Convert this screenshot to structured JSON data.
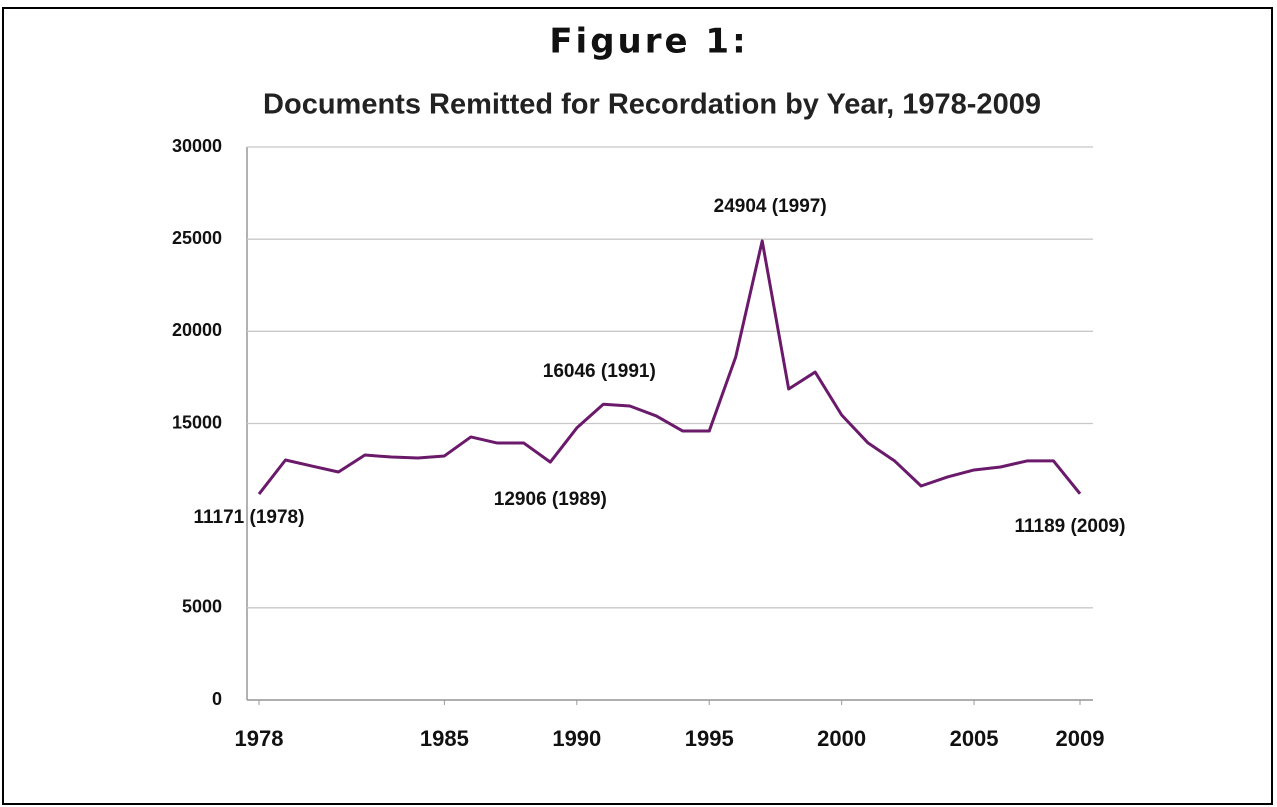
{
  "heading": "Figure 1:",
  "chart_data": {
    "type": "line",
    "title": "Documents Remitted for Recordation by Year, 1978-2009",
    "x": [
      1978,
      1979,
      1980,
      1981,
      1982,
      1983,
      1984,
      1985,
      1986,
      1987,
      1988,
      1989,
      1990,
      1991,
      1992,
      1993,
      1994,
      1995,
      1996,
      1997,
      1998,
      1999,
      2000,
      2001,
      2002,
      2003,
      2004,
      2005,
      2006,
      2007,
      2008,
      2009
    ],
    "series": [
      {
        "name": "Documents Remitted",
        "color": "#6b1a6b",
        "values": [
          11171,
          13020,
          12690,
          12370,
          13290,
          13180,
          13130,
          13240,
          14270,
          13940,
          13940,
          12906,
          14760,
          16046,
          15950,
          15410,
          14590,
          14590,
          18610,
          24904,
          16870,
          17790,
          15460,
          13940,
          12970,
          11610,
          12100,
          12480,
          12640,
          12970,
          12970,
          11189
        ],
        "value_labels": [
          "11171 (1978)",
          null,
          null,
          null,
          null,
          null,
          null,
          null,
          null,
          null,
          null,
          "12906 (1989)",
          null,
          "16046 (1991)",
          null,
          null,
          null,
          null,
          null,
          "24904 (1997)",
          null,
          null,
          null,
          null,
          null,
          null,
          null,
          null,
          null,
          null,
          null,
          "11189 (2009)"
        ]
      }
    ],
    "xlim": [
      1978,
      2009
    ],
    "xticks": [
      1978,
      1985,
      1990,
      1995,
      2000,
      2005,
      2009
    ],
    "ylim": [
      0,
      30000
    ],
    "yticks": [
      0,
      5000,
      15000,
      20000,
      25000,
      30000
    ],
    "grid": true
  }
}
